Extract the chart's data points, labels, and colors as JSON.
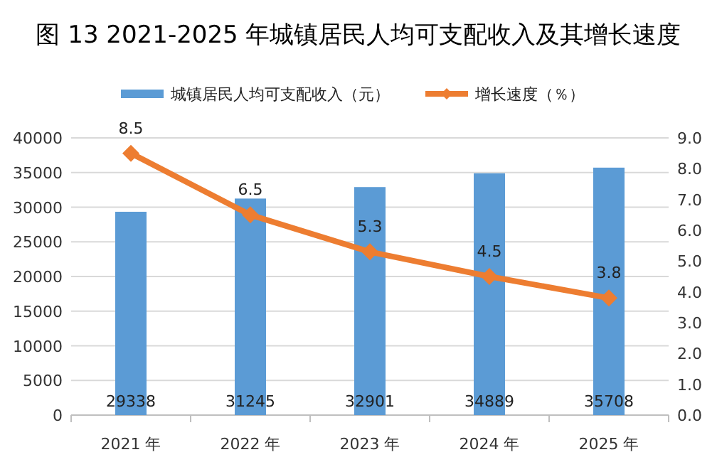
{
  "chart_data": {
    "type": "bar",
    "title": "图 13  2021-2025 年城镇居民人均可支配收入及其增长速度",
    "categories": [
      "2021 年",
      "2022 年",
      "2023 年",
      "2024 年",
      "2025 年"
    ],
    "series": [
      {
        "name": "城镇居民人均可支配收入（元）",
        "type": "bar",
        "color": "#5b9bd5",
        "values": [
          29338,
          31245,
          32901,
          34889,
          35708
        ]
      },
      {
        "name": "增长速度（％）",
        "type": "line",
        "axis": "y2",
        "color": "#ed7d31",
        "marker": "diamond",
        "values": [
          8.5,
          6.5,
          5.3,
          4.5,
          3.8
        ]
      }
    ],
    "ylim": [
      0,
      40000
    ],
    "yticks": [
      0,
      5000,
      10000,
      15000,
      20000,
      25000,
      30000,
      35000,
      40000
    ],
    "y2lim": [
      0,
      9
    ],
    "y2ticks": [
      {
        "value": 0,
        "label": "0.0"
      },
      {
        "value": 1,
        "label": "1.0"
      },
      {
        "value": 2,
        "label": "2.0"
      },
      {
        "value": 3,
        "label": "3.0"
      },
      {
        "value": 4,
        "label": "4.0"
      },
      {
        "value": 5,
        "label": "5.0"
      },
      {
        "value": 6,
        "label": "6.0"
      },
      {
        "value": 7,
        "label": "7.0"
      },
      {
        "value": 8,
        "label": "8.0"
      },
      {
        "value": 9,
        "label": "9.0"
      }
    ],
    "grid": "y",
    "legend": "top",
    "data_labels": true
  }
}
